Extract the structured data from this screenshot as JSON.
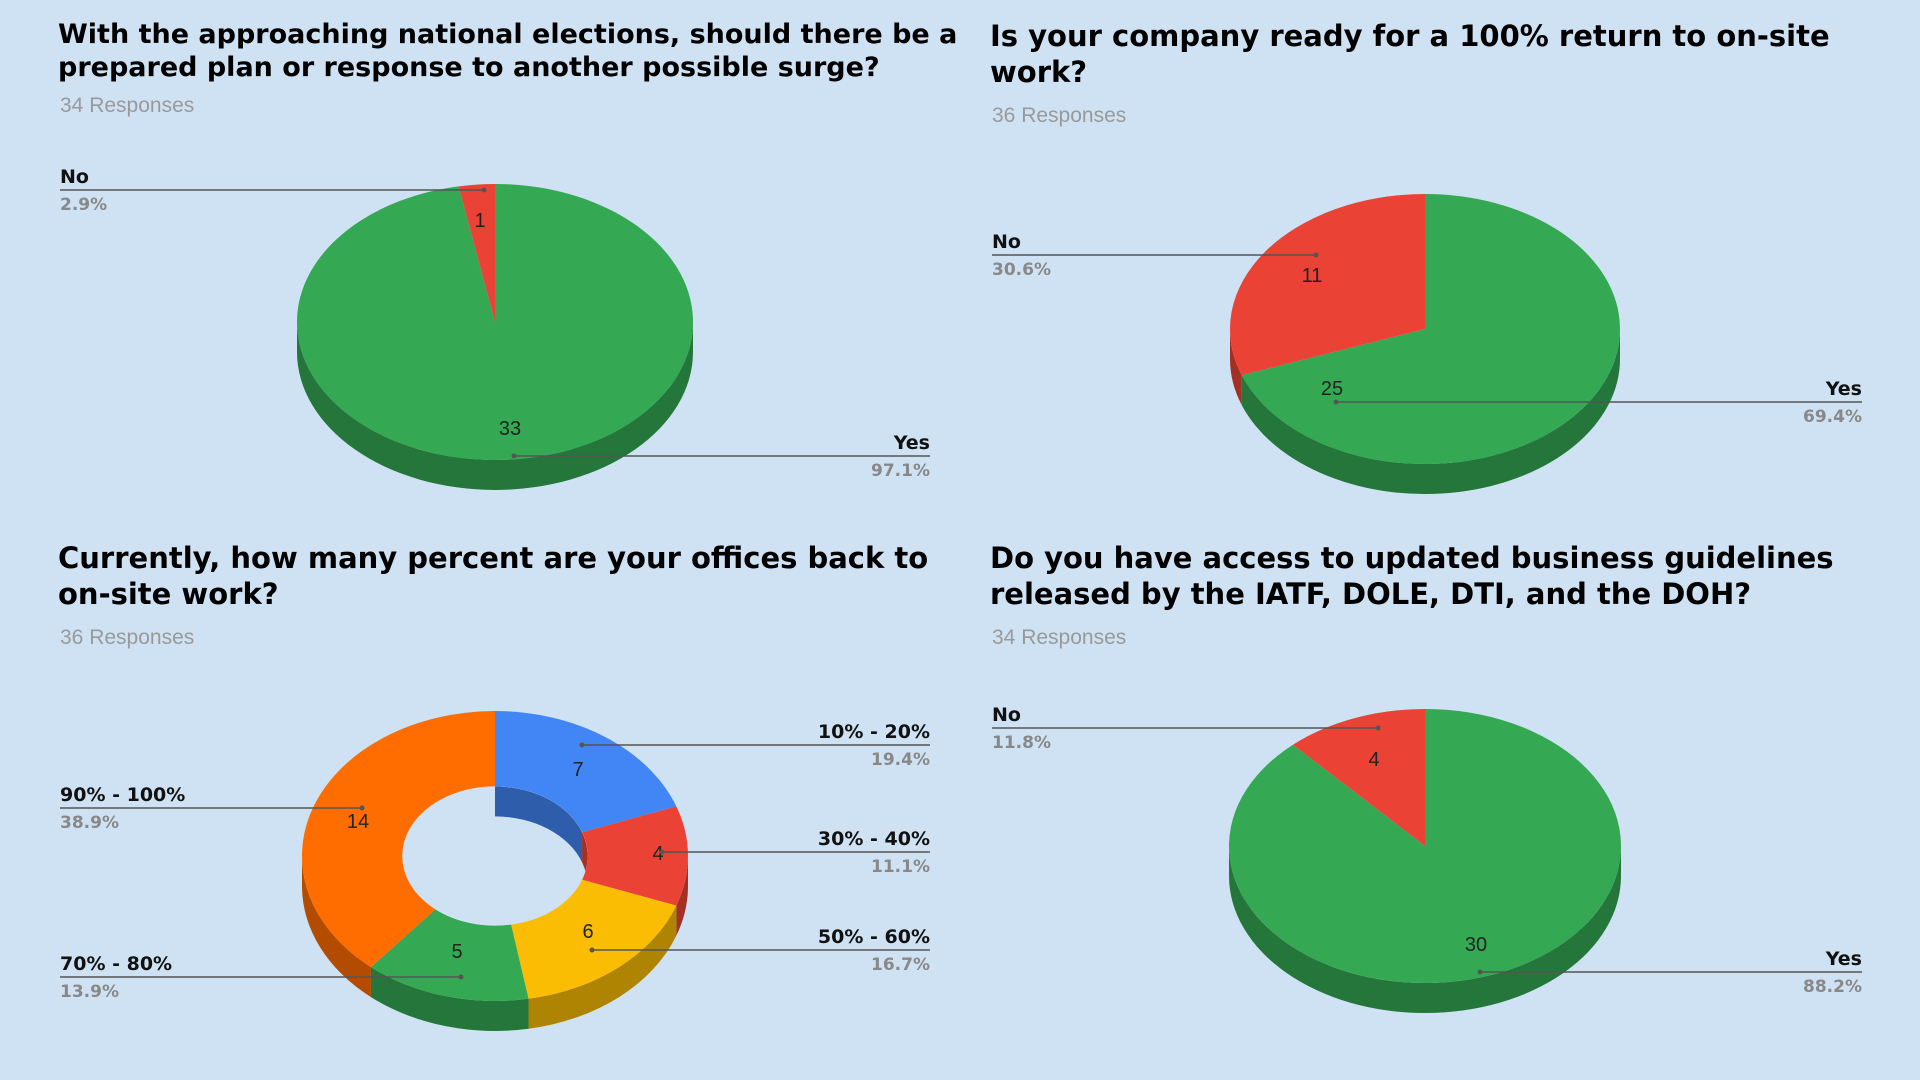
{
  "charts": [
    {
      "title": "With the approaching national elections, should there be a prepared plan or response to another possible surge?",
      "subtitle": "34 Responses",
      "chart_data": {
        "type": "pie",
        "categories": [
          "Yes",
          "No"
        ],
        "values": [
          33,
          1
        ],
        "percent_labels": [
          "97.1%",
          "2.9%"
        ],
        "colors": [
          "#34a853",
          "#ea4335"
        ],
        "legend": "labeled"
      }
    },
    {
      "title": "Is your company ready for a 100% return to on-site work?",
      "subtitle": "36 Responses",
      "chart_data": {
        "type": "pie",
        "categories": [
          "Yes",
          "No"
        ],
        "values": [
          25,
          11
        ],
        "percent_labels": [
          "69.4%",
          "30.6%"
        ],
        "colors": [
          "#34a853",
          "#ea4335"
        ],
        "legend": "labeled"
      }
    },
    {
      "title": "Currently, how many percent are your offices back to on-site work?",
      "subtitle": "36 Responses",
      "chart_data": {
        "type": "pie",
        "donut": true,
        "categories": [
          "10% - 20%",
          "30% - 40%",
          "50% - 60%",
          "70% - 80%",
          "90% - 100%"
        ],
        "values": [
          7,
          4,
          6,
          5,
          14
        ],
        "percent_labels": [
          "19.4%",
          "11.1%",
          "16.7%",
          "13.9%",
          "38.9%"
        ],
        "colors": [
          "#4285f4",
          "#ea4335",
          "#fbbc04",
          "#34a853",
          "#ff6d01"
        ],
        "legend": "labeled"
      }
    },
    {
      "title": "Do you have access to updated business guidelines released by the IATF, DOLE, DTI, and the DOH?",
      "subtitle": "34 Responses",
      "chart_data": {
        "type": "pie",
        "categories": [
          "Yes",
          "No"
        ],
        "values": [
          30,
          4
        ],
        "percent_labels": [
          "88.2%",
          "11.8%"
        ],
        "colors": [
          "#34a853",
          "#ea4335"
        ],
        "legend": "labeled"
      }
    }
  ]
}
